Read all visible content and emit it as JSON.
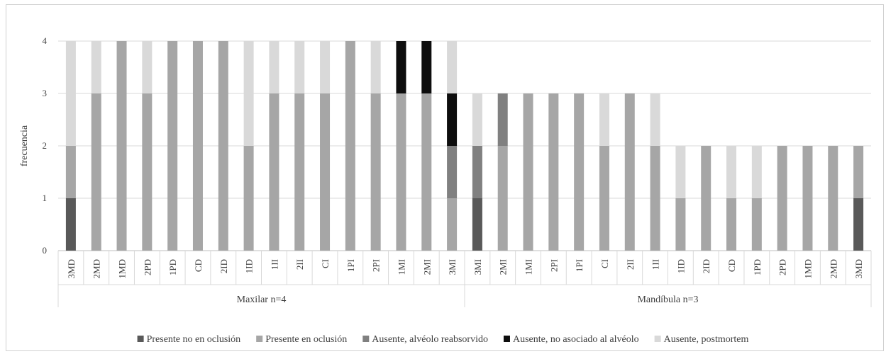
{
  "chart_data": {
    "type": "bar",
    "stacked": true,
    "ylabel": "frecuencia",
    "ylim": [
      0,
      4
    ],
    "yticks": [
      "0",
      "1",
      "2",
      "3",
      "4"
    ],
    "grid": true,
    "legend_position": "bottom",
    "groups": [
      {
        "label": "Maxilar n=4",
        "categories": [
          "3MD",
          "2MD",
          "1MD",
          "2PD",
          "1PD",
          "CD",
          "2ID",
          "1ID",
          "1II",
          "2II",
          "CI",
          "1PI",
          "2PI",
          "1MI",
          "2MI",
          "3MI"
        ]
      },
      {
        "label": "Mandíbula n=3",
        "categories": [
          "3MI",
          "2MI",
          "1MI",
          "2PI",
          "1PI",
          "CI",
          "2II",
          "1II",
          "1ID",
          "2ID",
          "CD",
          "1PD",
          "2PD",
          "1MD",
          "2MD",
          "3MD"
        ]
      }
    ],
    "categories": [
      "3MD",
      "2MD",
      "1MD",
      "2PD",
      "1PD",
      "CD",
      "2ID",
      "1ID",
      "1II",
      "2II",
      "CI",
      "1PI",
      "2PI",
      "1MI",
      "2MI",
      "3MI",
      "3MI",
      "2MI",
      "1MI",
      "2PI",
      "1PI",
      "CI",
      "2II",
      "1II",
      "1ID",
      "2ID",
      "CD",
      "1PD",
      "2PD",
      "1MD",
      "2MD",
      "3MD"
    ],
    "series": [
      {
        "name": "Presente no en oclusión",
        "color": "#595959",
        "values": [
          1,
          0,
          0,
          0,
          0,
          0,
          0,
          0,
          0,
          0,
          0,
          0,
          0,
          0,
          0,
          0,
          1,
          0,
          0,
          0,
          0,
          0,
          0,
          0,
          0,
          0,
          0,
          0,
          0,
          0,
          0,
          1
        ]
      },
      {
        "name": "Presente en oclusión",
        "color": "#a6a6a6",
        "values": [
          1,
          3,
          4,
          3,
          4,
          4,
          4,
          2,
          3,
          3,
          3,
          4,
          3,
          3,
          3,
          1,
          0,
          2,
          3,
          3,
          3,
          2,
          3,
          2,
          1,
          2,
          1,
          1,
          2,
          2,
          2,
          1
        ]
      },
      {
        "name": "Ausente, alvéolo reabsorvido",
        "color": "#808080",
        "values": [
          0,
          0,
          0,
          0,
          0,
          0,
          0,
          0,
          0,
          0,
          0,
          0,
          0,
          0,
          0,
          1,
          1,
          1,
          0,
          0,
          0,
          0,
          0,
          0,
          0,
          0,
          0,
          0,
          0,
          0,
          0,
          0
        ]
      },
      {
        "name": "Ausente, no asociado al alvéolo",
        "color": "#0d0d0d",
        "values": [
          0,
          0,
          0,
          0,
          0,
          0,
          0,
          0,
          0,
          0,
          0,
          0,
          0,
          1,
          1,
          1,
          0,
          0,
          0,
          0,
          0,
          0,
          0,
          0,
          0,
          0,
          0,
          0,
          0,
          0,
          0,
          0
        ]
      },
      {
        "name": "Ausente, postmortem",
        "color": "#d9d9d9",
        "values": [
          2,
          1,
          0,
          1,
          0,
          0,
          0,
          2,
          1,
          1,
          1,
          0,
          1,
          0,
          0,
          1,
          1,
          0,
          0,
          0,
          0,
          1,
          0,
          1,
          1,
          0,
          1,
          1,
          0,
          0,
          0,
          0
        ]
      }
    ]
  }
}
